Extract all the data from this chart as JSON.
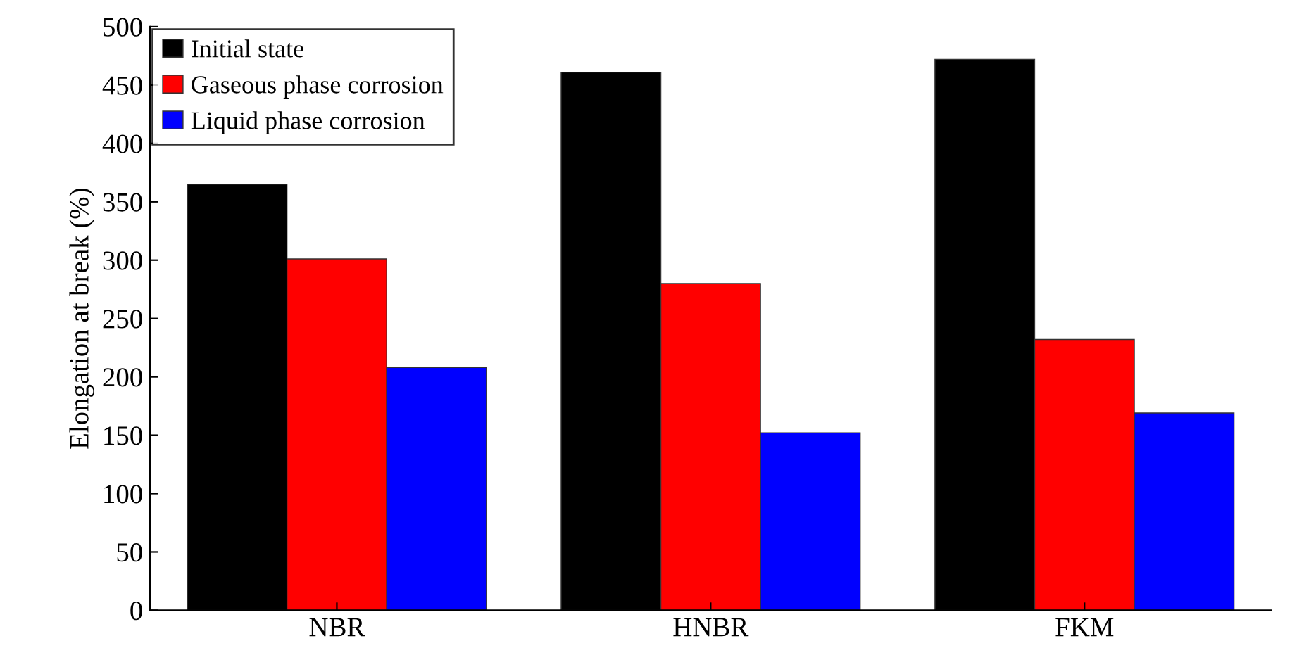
{
  "chart_data": {
    "type": "bar",
    "ylabel": "Elongation at break (%)",
    "categories": [
      "NBR",
      "HNBR",
      "FKM"
    ],
    "series": [
      {
        "name": "Initial state",
        "color": "#000000",
        "values": [
          365,
          461,
          472
        ]
      },
      {
        "name": "Gaseous phase corrosion",
        "color": "#ff0000",
        "values": [
          301,
          280,
          232
        ]
      },
      {
        "name": "Liquid phase corrosion",
        "color": "#0000ff",
        "values": [
          208,
          152,
          169
        ]
      }
    ],
    "ylim": [
      0,
      500
    ],
    "yticks": [
      0,
      50,
      100,
      150,
      200,
      250,
      300,
      350,
      400,
      450,
      500
    ],
    "grid": false,
    "legend": "top left"
  }
}
